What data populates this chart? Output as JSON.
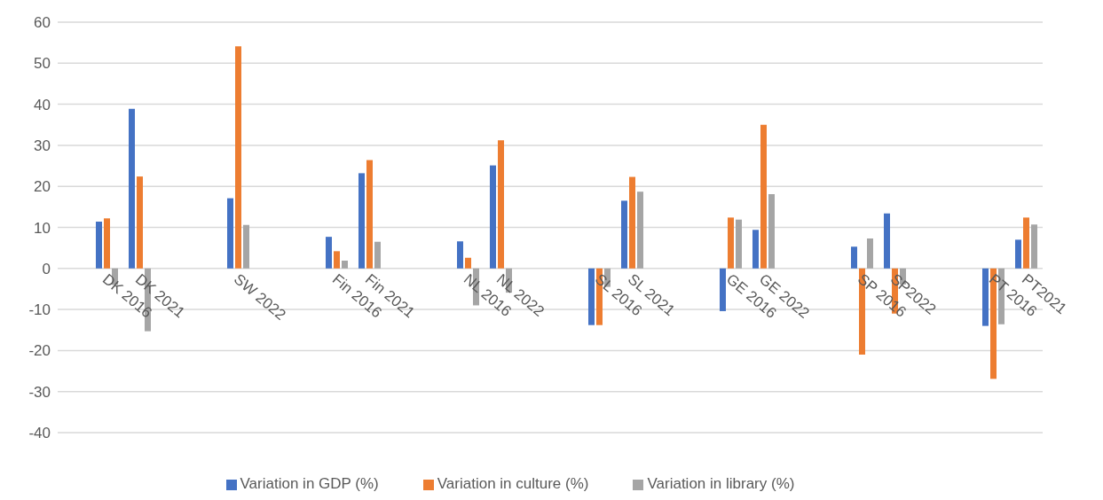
{
  "chart_data": {
    "type": "bar",
    "categories": [
      null,
      "DK 2016",
      "DK 2021",
      null,
      null,
      "SW 2022",
      null,
      null,
      "Fin 2016",
      "Fin 2021",
      null,
      null,
      "NL 2016",
      "NL 2022",
      null,
      null,
      "SL 2016",
      "SL 2021",
      null,
      null,
      "GE 2016",
      "GE 2022",
      null,
      null,
      "SP 2016",
      "SP2022",
      null,
      null,
      "PT 2016",
      "PT2021"
    ],
    "series": [
      {
        "name": "Variation in GDP (%)",
        "color": "#4472c4",
        "values": [
          null,
          11.4,
          38.9,
          null,
          null,
          17.1,
          null,
          null,
          7.7,
          23.2,
          null,
          null,
          6.6,
          25.1,
          null,
          null,
          -13.8,
          16.5,
          null,
          null,
          -10.4,
          9.4,
          null,
          null,
          5.3,
          13.4,
          null,
          null,
          -14.0,
          7.0
        ]
      },
      {
        "name": "Variation in culture (%)",
        "color": "#ed7d31",
        "values": [
          null,
          12.2,
          22.4,
          null,
          null,
          54.1,
          null,
          null,
          4.2,
          26.4,
          null,
          null,
          2.6,
          31.2,
          null,
          null,
          -13.8,
          22.3,
          null,
          null,
          12.4,
          35.0,
          null,
          null,
          -21.0,
          -11.0,
          null,
          null,
          -26.9,
          12.4
        ]
      },
      {
        "name": "Variation in library (%)",
        "color": "#a5a5a5",
        "values": [
          null,
          -4.0,
          -15.3,
          null,
          null,
          10.6,
          null,
          null,
          1.9,
          6.5,
          null,
          null,
          -9.0,
          -5.9,
          null,
          null,
          -4.5,
          18.7,
          null,
          null,
          11.9,
          18.1,
          null,
          null,
          7.3,
          -3.9,
          null,
          null,
          -13.6,
          10.7
        ]
      }
    ],
    "ylim": [
      -40,
      60
    ],
    "yticks": [
      -40,
      -30,
      -20,
      -10,
      0,
      10,
      20,
      30,
      40,
      50,
      60
    ],
    "grid": "y",
    "legend": "bottom"
  }
}
